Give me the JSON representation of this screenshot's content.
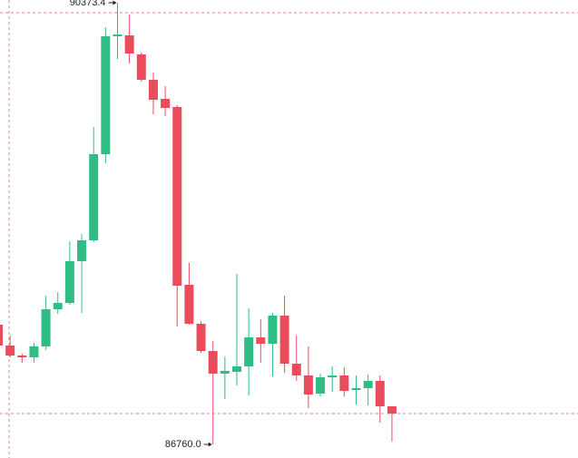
{
  "chart_data": {
    "type": "candlestick",
    "up_color": "#2ebd85",
    "down_color": "#ea4c5c",
    "ylim": [
      86648.6,
      90395.7
    ],
    "open": [
      87739.3,
      87568.7,
      87487.1,
      87472.2,
      87561.3,
      87865.5,
      87917.4,
      88258.7,
      88429.4,
      89134.3,
      90098.9,
      90106.3,
      89950.5,
      89742.7,
      89586.9,
      89520.1,
      88065.8,
      87746.8,
      87524.2,
      87338.7,
      87353.5,
      87398.0,
      87635.5,
      87583.5,
      87813.5,
      87420.3,
      87323.8,
      87175.4,
      87309.0,
      87323.8,
      87205.1,
      87219.9,
      87279.3,
      87071.5
    ],
    "high": [
      87754.2,
      87650.3,
      87501.9,
      87590.9,
      87976.8,
      88006.5,
      88422.0,
      88481.3,
      89356.9,
      90173.1,
      90373.4,
      90277.0,
      89965.3,
      89802.1,
      89690.8,
      89535.0,
      88243.9,
      87769.0,
      87605.8,
      87479.6,
      88154.9,
      87872.9,
      87783.9,
      87835.8,
      87976.8,
      87650.3,
      87561.3,
      87338.7,
      87398.0,
      87390.6,
      87323.8,
      87331.2,
      87323.8,
      87071.5
    ],
    "low": [
      87539.0,
      87472.2,
      87427.7,
      87427.7,
      87531.6,
      87828.4,
      87902.6,
      87835.8,
      88414.6,
      89060.1,
      89913.4,
      89876.3,
      89727.9,
      89460.8,
      89445.9,
      87724.5,
      87739.3,
      87509.3,
      86760.0,
      87130.9,
      87242.2,
      87160.6,
      87427.7,
      87316.4,
      87346.1,
      87279.3,
      87056.7,
      87153.2,
      87190.3,
      87153.2,
      87086.4,
      87079.0,
      86938.0,
      86782.2
    ],
    "close": [
      87568.7,
      87487.1,
      87472.2,
      87561.3,
      87865.5,
      87917.4,
      88258.7,
      88429.4,
      89134.3,
      90098.9,
      90113.7,
      89957.9,
      89742.7,
      89579.5,
      89512.7,
      88058.4,
      87746.8,
      87524.2,
      87338.7,
      87360.9,
      87398.0,
      87635.5,
      87583.5,
      87813.5,
      87420.3,
      87323.8,
      87168.0,
      87309.0,
      87323.8,
      87197.7,
      87219.9,
      87279.3,
      87071.5,
      87012.2
    ],
    "annotations": [
      {
        "index": 10,
        "value": 90373.4
      },
      {
        "index": 18,
        "value": 86760,
        "label": "86760.0"
      }
    ]
  }
}
